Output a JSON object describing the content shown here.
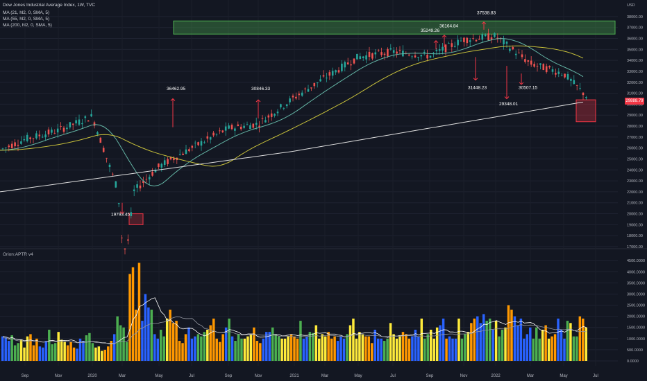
{
  "header": {
    "title": "Dow Jones Industrial Average Index, 1W, TVC",
    "ma1": "MA (21, hl2, 0, SMA, 5)",
    "ma2": "MA (55, hl2, 0, SMA, 5)",
    "ma3": "MA (200, hl2, 0, SMA, 5)"
  },
  "price_axis": {
    "currency": "USD",
    "ticks": [
      "38000.00",
      "37000.00",
      "36000.00",
      "35000.00",
      "34000.00",
      "33000.00",
      "32000.00",
      "31000.00",
      "30000.00",
      "29000.00",
      "28000.00",
      "27000.00",
      "26000.00",
      "25000.00",
      "24000.00",
      "23000.00",
      "22000.00",
      "21000.00",
      "20000.00",
      "19000.00",
      "18000.00",
      "17000.00"
    ],
    "last_price": "29888.79"
  },
  "indicator": {
    "label": "Orion:APTR v4",
    "ticks": [
      "4500.0000",
      "4000.0000",
      "3500.0000",
      "3000.0000",
      "2500.0000",
      "2000.0000",
      "1500.0000",
      "1000.0000",
      "500.0000",
      "0.0000"
    ]
  },
  "time_axis": [
    "Sep",
    "Nov",
    "2020",
    "Mar",
    "May",
    "Jul",
    "Sep",
    "Nov",
    "2021",
    "Mar",
    "May",
    "Jul",
    "Sep",
    "Nov",
    "2022",
    "Mar",
    "May",
    "Jul"
  ],
  "annotations": [
    "37538.83",
    "36164.84",
    "35249.26",
    "36462.95",
    "30846.33",
    "31448.23",
    "29348.01",
    "30507.15",
    "19793.45"
  ],
  "colors": {
    "background": "#131722",
    "up": "#26a69a",
    "down": "#ef5350",
    "ma21": "#64b5a5",
    "ma55": "#c9c23b",
    "ma200": "#e0e0e0",
    "zone_green": "#4caf50",
    "zone_red": "#f23645",
    "hist_blue": "#2962ff",
    "hist_green": "#4caf50",
    "hist_yellow": "#ffeb3b",
    "hist_orange": "#ff9800",
    "hist_red": "#f44336"
  },
  "chart_data": [
    {
      "type": "line",
      "title": "Dow Jones Industrial Average Index, 1W, TVC",
      "ylabel": "USD",
      "ylim": [
        17000,
        38500
      ],
      "series": [
        {
          "name": "Dow Jones Industrial Average Index",
          "x": [
            "Sep",
            "Nov",
            "2020",
            "Mar",
            "May",
            "Jul",
            "Sep",
            "Nov",
            "2021",
            "Mar",
            "May",
            "Jul",
            "Sep",
            "Nov",
            "2022",
            "Mar",
            "May",
            "Jul"
          ],
          "values": [
            26800,
            27600,
            28900,
            21000,
            24300,
            26000,
            27800,
            28200,
            30600,
            32400,
            34300,
            34800,
            34400,
            35900,
            36200,
            33700,
            32800,
            29900
          ]
        }
      ],
      "annotations": [
        {
          "label": "19793.45",
          "x": "Mar 2020",
          "y": 19793.45
        },
        {
          "label": "36462.95",
          "x": "Jun 2020",
          "y": 36462.95
        },
        {
          "label": "30846.33",
          "x": "Nov 2020",
          "y": 30846.33
        },
        {
          "label": "35249.26",
          "x": "Sep 2021",
          "y": 35249.26
        },
        {
          "label": "36164.84",
          "x": "Oct 2021",
          "y": 36164.84
        },
        {
          "label": "37538.83",
          "x": "Jan 2022",
          "y": 37538.83
        },
        {
          "label": "31448.23",
          "x": "Nov 2021",
          "y": 31448.23
        },
        {
          "label": "29348.01",
          "x": "Jan 2022",
          "y": 29348.01
        },
        {
          "label": "30507.15",
          "x": "Mar 2022",
          "y": 30507.15
        }
      ]
    },
    {
      "type": "bar",
      "title": "Orion:APTR v4",
      "ylim": [
        0,
        4600
      ],
      "values": [
        1100,
        1050,
        900,
        1150,
        700,
        800,
        950,
        600,
        1100,
        1200,
        700,
        1000,
        650,
        600,
        900,
        1400,
        750,
        800,
        1300,
        950,
        850,
        700,
        850,
        600,
        550,
        1000,
        900,
        1150,
        1250,
        800,
        600,
        650,
        450,
        500,
        650,
        900,
        1200,
        2000,
        1600,
        1500,
        850,
        3900,
        4200,
        2300,
        4400,
        1800,
        3000,
        2400,
        2300,
        1200,
        1000,
        1400,
        1100,
        1900,
        2300,
        1700,
        1800,
        900,
        800,
        1200,
        1500,
        1000,
        1100,
        1200,
        1100,
        1300,
        1400,
        1600,
        1900,
        1000,
        850,
        1200,
        1500,
        1900,
        1100,
        900,
        1200,
        1000,
        1000,
        1100,
        1200,
        1500,
        900,
        800,
        1000,
        1300,
        1300,
        1500,
        1200,
        1100,
        1000,
        1000,
        1100,
        1200,
        1100,
        1000,
        1800,
        1000,
        1100,
        1300,
        1250,
        1600,
        1000,
        1200,
        1100,
        1300,
        1000,
        1100,
        900,
        1100,
        1000,
        1200,
        1600,
        1900,
        1000,
        1300,
        1200,
        1100,
        1100,
        800,
        1400,
        1000,
        1000,
        900,
        1000,
        1700,
        1200,
        1000,
        1100,
        1300,
        1200,
        1000,
        1100,
        1400,
        1100,
        1900,
        1000,
        1200,
        1400,
        1000,
        1500,
        1600,
        1900,
        1000,
        1100,
        1000,
        1000,
        1900,
        1000,
        1200,
        1300,
        1700,
        1900,
        2000,
        1700,
        2100,
        1800,
        1900,
        1400,
        1800,
        1100,
        1400,
        1500,
        2500,
        2300,
        2000,
        1600,
        1900,
        1000,
        1200,
        1500,
        1000,
        1500,
        1000,
        1400,
        1600,
        1000,
        1100,
        1200,
        1900,
        1400,
        1000,
        1800,
        1700,
        1100,
        1100,
        2000,
        1900,
        1500
      ]
    }
  ]
}
